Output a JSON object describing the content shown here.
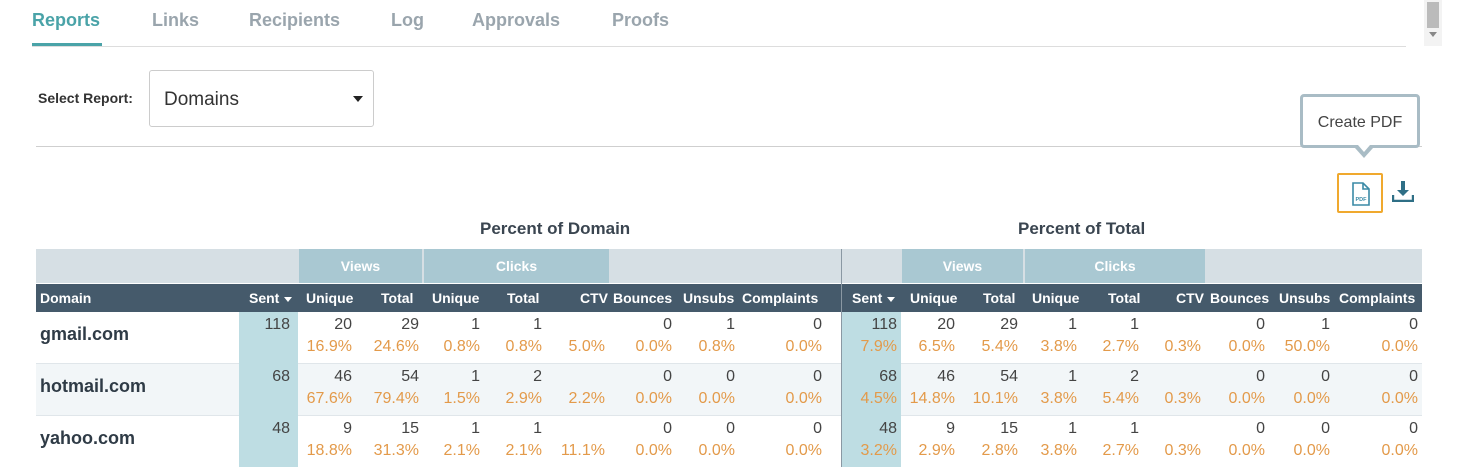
{
  "tabs": [
    {
      "label": "Reports",
      "active": true
    },
    {
      "label": "Links"
    },
    {
      "label": "Recipients"
    },
    {
      "label": "Log"
    },
    {
      "label": "Approvals"
    },
    {
      "label": "Proofs"
    }
  ],
  "select": {
    "label": "Select Report:",
    "value": "Domains"
  },
  "tooltip": {
    "text": "Create PDF"
  },
  "icons": {
    "pdf": "pdf-file-icon",
    "pdf_text": "PDF",
    "download": "download-icon"
  },
  "colors": {
    "accent": "#4aa3a8",
    "header_bg": "#455a6b",
    "group_bg": "#a9c8d2",
    "sent_bg": "#bedde3",
    "percent": "#e39a4a",
    "highlight": "#f0a92e"
  },
  "sections": {
    "domain": "Percent of Domain",
    "total": "Percent of Total"
  },
  "groups": {
    "views": "Views",
    "clicks": "Clicks"
  },
  "columns": {
    "domain": "Domain",
    "sent": "Sent",
    "unique": "Unique",
    "total": "Total",
    "ctv": "CTV",
    "bounces": "Bounces",
    "unsubs": "Unsubs",
    "complaints": "Complaints"
  },
  "rows": [
    {
      "domain": "gmail.com",
      "left": {
        "sent": "118",
        "v_unique": [
          "20",
          "16.9%"
        ],
        "v_total": [
          "29",
          "24.6%"
        ],
        "c_unique": [
          "1",
          "0.8%"
        ],
        "c_total": [
          "1",
          "0.8%"
        ],
        "ctv": "5.0%",
        "bounces": [
          "0",
          "0.0%"
        ],
        "unsubs": [
          "1",
          "0.8%"
        ],
        "complaints": [
          "0",
          "0.0%"
        ]
      },
      "right": {
        "sent": [
          "118",
          "7.9%"
        ],
        "v_unique": [
          "20",
          "6.5%"
        ],
        "v_total": [
          "29",
          "5.4%"
        ],
        "c_unique": [
          "1",
          "3.8%"
        ],
        "c_total": [
          "1",
          "2.7%"
        ],
        "ctv": "0.3%",
        "bounces": [
          "0",
          "0.0%"
        ],
        "unsubs": [
          "1",
          "50.0%"
        ],
        "complaints": [
          "0",
          "0.0%"
        ]
      }
    },
    {
      "domain": "hotmail.com",
      "left": {
        "sent": "68",
        "v_unique": [
          "46",
          "67.6%"
        ],
        "v_total": [
          "54",
          "79.4%"
        ],
        "c_unique": [
          "1",
          "1.5%"
        ],
        "c_total": [
          "2",
          "2.9%"
        ],
        "ctv": "2.2%",
        "bounces": [
          "0",
          "0.0%"
        ],
        "unsubs": [
          "0",
          "0.0%"
        ],
        "complaints": [
          "0",
          "0.0%"
        ]
      },
      "right": {
        "sent": [
          "68",
          "4.5%"
        ],
        "v_unique": [
          "46",
          "14.8%"
        ],
        "v_total": [
          "54",
          "10.1%"
        ],
        "c_unique": [
          "1",
          "3.8%"
        ],
        "c_total": [
          "2",
          "5.4%"
        ],
        "ctv": "0.3%",
        "bounces": [
          "0",
          "0.0%"
        ],
        "unsubs": [
          "0",
          "0.0%"
        ],
        "complaints": [
          "0",
          "0.0%"
        ]
      }
    },
    {
      "domain": "yahoo.com",
      "left": {
        "sent": "48",
        "v_unique": [
          "9",
          "18.8%"
        ],
        "v_total": [
          "15",
          "31.3%"
        ],
        "c_unique": [
          "1",
          "2.1%"
        ],
        "c_total": [
          "1",
          "2.1%"
        ],
        "ctv": "11.1%",
        "bounces": [
          "0",
          "0.0%"
        ],
        "unsubs": [
          "0",
          "0.0%"
        ],
        "complaints": [
          "0",
          "0.0%"
        ]
      },
      "right": {
        "sent": [
          "48",
          "3.2%"
        ],
        "v_unique": [
          "9",
          "2.9%"
        ],
        "v_total": [
          "15",
          "2.8%"
        ],
        "c_unique": [
          "1",
          "3.8%"
        ],
        "c_total": [
          "1",
          "2.7%"
        ],
        "ctv": "0.3%",
        "bounces": [
          "0",
          "0.0%"
        ],
        "unsubs": [
          "0",
          "0.0%"
        ],
        "complaints": [
          "0",
          "0.0%"
        ]
      }
    }
  ]
}
